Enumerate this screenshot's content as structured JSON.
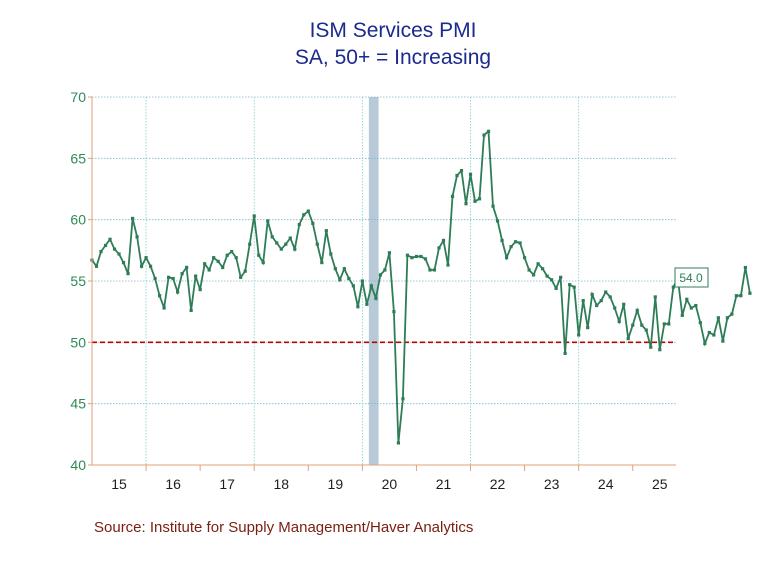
{
  "chart_data": {
    "type": "line",
    "title": "ISM Services PMI",
    "subtitle": "SA, 50+ = Increasing",
    "source": "Source:  Institute for Supply Management/Haver Analytics",
    "ylim": [
      40,
      70
    ],
    "yticks": [
      "40",
      "45",
      "50",
      "55",
      "60",
      "65",
      "70"
    ],
    "xlim": [
      2015.0,
      2025.8
    ],
    "xtick_labels": [
      "15",
      "16",
      "17",
      "18",
      "19",
      "20",
      "21",
      "22",
      "23",
      "24",
      "25"
    ],
    "reference_line": {
      "value": 50,
      "color": "#c00000",
      "style": "dashed"
    },
    "recession_shading": {
      "start": 2020.12,
      "end": 2020.3,
      "color": "#b8c9d8"
    },
    "last_value_label": "54.0",
    "grid": true,
    "series": [
      {
        "color": "#2e7d57",
        "start": "2015-01",
        "frequency": "monthly",
        "values": [
          56.7,
          56.2,
          57.4,
          57.9,
          58.4,
          57.6,
          57.2,
          56.5,
          55.6,
          60.1,
          58.6,
          56.2,
          56.9,
          56.2,
          55.2,
          53.8,
          52.8,
          55.3,
          55.2,
          54.1,
          55.6,
          56.1,
          52.6,
          55.4,
          54.3,
          56.4,
          55.9,
          56.9,
          56.6,
          56.1,
          57.1,
          57.4,
          56.9,
          55.3,
          55.8,
          58.0,
          60.3,
          57.1,
          56.5,
          59.9,
          58.6,
          58.1,
          57.6,
          58.0,
          58.5,
          57.6,
          59.6,
          60.4,
          60.7,
          59.7,
          58.0,
          56.5,
          59.1,
          57.2,
          56.0,
          55.1,
          56.0,
          55.2,
          54.6,
          52.9,
          55.0,
          53.1,
          54.6,
          53.6,
          55.5,
          55.9,
          57.3,
          52.5,
          41.8,
          45.4,
          57.1,
          56.9,
          57.0,
          57.0,
          56.8,
          55.9,
          55.9,
          57.7,
          58.3,
          56.3,
          61.9,
          63.6,
          64.0,
          61.3,
          63.7,
          61.5,
          61.7,
          66.9,
          67.2,
          61.1,
          59.9,
          58.3,
          56.9,
          57.8,
          58.2,
          58.1,
          56.9,
          55.9,
          55.5,
          56.4,
          56.0,
          55.4,
          55.1,
          54.4,
          55.3,
          49.1,
          54.7,
          54.5,
          50.6,
          53.4,
          51.2,
          53.9,
          53.0,
          53.4,
          54.1,
          53.7,
          52.8,
          51.7,
          53.1,
          50.3,
          51.4,
          52.6,
          51.4,
          51.0,
          49.6,
          53.7,
          49.4,
          51.5,
          51.5,
          54.5,
          55.2,
          52.2,
          53.5,
          52.8,
          53.0,
          51.6,
          49.9,
          50.8,
          50.6,
          52.0,
          50.1,
          52.0,
          52.3,
          53.8,
          53.8,
          56.1,
          54.0
        ]
      }
    ]
  }
}
